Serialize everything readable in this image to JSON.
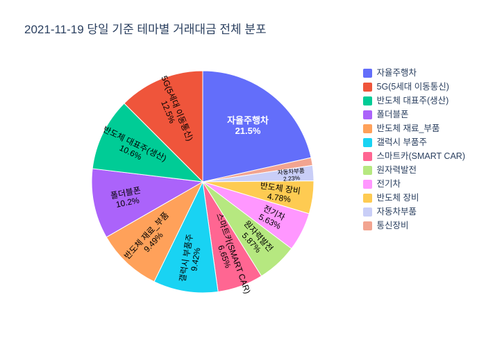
{
  "title": "2021-11-19 당일 기준 테마별 거래대금 전체 분포",
  "colors": {
    "background": "#ffffff",
    "text": "#2a3f5f"
  },
  "chart_data": {
    "type": "pie",
    "title": "2021-11-19 당일 기준 테마별 거래대금 전체 분포",
    "legend_position": "right",
    "slices_clockwise_from_top": [
      {
        "label": "자율주행차",
        "pct": 21.5,
        "pct_label": "21.5%",
        "color": "#636EFA",
        "label_color": "#ffffff",
        "label_visible": true
      },
      {
        "label": "통신장비",
        "pct": 1.13,
        "pct_label": "",
        "color": "#F2A490",
        "label_color": "#000000",
        "label_visible": false
      },
      {
        "label": "자동차부품",
        "pct": 2.23,
        "pct_label": "2.23%",
        "color": "#C9CEF7",
        "label_color": "#000000",
        "label_visible": true
      },
      {
        "label": "반도체 장비",
        "pct": 4.78,
        "pct_label": "4.78%",
        "color": "#FECB52",
        "label_color": "#000000",
        "label_visible": true
      },
      {
        "label": "전기차",
        "pct": 5.63,
        "pct_label": "5.63%",
        "color": "#FF97FF",
        "label_color": "#000000",
        "label_visible": true
      },
      {
        "label": "원자력발전",
        "pct": 5.87,
        "pct_label": "5.87%",
        "color": "#B6E880",
        "label_color": "#000000",
        "label_visible": true
      },
      {
        "label": "스마트카(SMART CAR)",
        "pct": 6.65,
        "pct_label": "6.65%",
        "color": "#FF6692",
        "label_color": "#000000",
        "label_visible": true
      },
      {
        "label": "갤럭시 부품주",
        "pct": 9.42,
        "pct_label": "9.42%",
        "color": "#19D3F3",
        "label_color": "#000000",
        "label_visible": true
      },
      {
        "label": "반도체 재료_부품",
        "pct": 9.49,
        "pct_label": "9.49%",
        "color": "#FFA15A",
        "label_color": "#000000",
        "label_visible": true
      },
      {
        "label": "폴더블폰",
        "pct": 10.2,
        "pct_label": "10.2%",
        "color": "#AB63FA",
        "label_color": "#000000",
        "label_visible": true
      },
      {
        "label": "반도체 대표주(생산)",
        "pct": 10.6,
        "pct_label": "10.6%",
        "color": "#00CC96",
        "label_color": "#000000",
        "label_visible": true
      },
      {
        "label": "5G(5세대 이동통신)",
        "pct": 12.5,
        "pct_label": "12.5%",
        "color": "#EF553B",
        "label_color": "#000000",
        "label_visible": true
      }
    ],
    "legend_order": [
      "자율주행차",
      "5G(5세대 이동통신)",
      "반도체 대표주(생산)",
      "폴더블폰",
      "반도체 재료_부품",
      "갤럭시 부품주",
      "스마트카(SMART CAR)",
      "원자력발전",
      "전기차",
      "반도체 장비",
      "자동차부품",
      "통신장비"
    ]
  }
}
